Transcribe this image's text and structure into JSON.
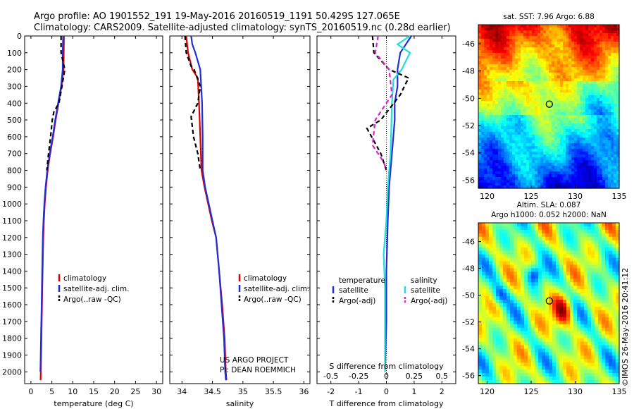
{
  "title": {
    "line1": "Argo profile: AO 1901552_191 19-May-2016 20160519_1191 50.429S 127.065E",
    "line2": "Climatology: CARS2009. Satellite-adjusted climatology: synTS_20160519.nc (0.28d earlier)"
  },
  "colors": {
    "climatology": "#dd0000",
    "satellite": "#1f2fd8",
    "argo": "#000000",
    "satellite_s": "#22dddd",
    "argo_s": "#dd22cc"
  },
  "credit": "©IMOS 26-May-2016 20:41:12",
  "chart_data": [
    {
      "id": "temperature",
      "type": "line",
      "xlabel": "temperature (deg C)",
      "xlim": [
        -1.5,
        31.5
      ],
      "xticks": [
        0,
        5,
        10,
        15,
        20,
        25,
        30
      ],
      "ylim": [
        2070,
        0
      ],
      "yticks": [
        0,
        100,
        200,
        300,
        400,
        500,
        600,
        700,
        800,
        900,
        1000,
        1100,
        1200,
        1300,
        1400,
        1500,
        1600,
        1700,
        1800,
        1900,
        2000
      ],
      "legend": [
        "climatology",
        "satellite-adj. clim.",
        "Argo(..raw -QC)"
      ],
      "series": [
        {
          "name": "climatology",
          "style": "solid",
          "color_key": "climatology",
          "points": [
            [
              7.9,
              0
            ],
            [
              7.85,
              100
            ],
            [
              7.8,
              200
            ],
            [
              7.3,
              300
            ],
            [
              6.6,
              400
            ],
            [
              5.9,
              500
            ],
            [
              5.3,
              600
            ],
            [
              4.6,
              700
            ],
            [
              4.0,
              800
            ],
            [
              3.6,
              900
            ],
            [
              3.3,
              1000
            ],
            [
              3.1,
              1100
            ],
            [
              2.95,
              1200
            ],
            [
              2.8,
              1400
            ],
            [
              2.65,
              1600
            ],
            [
              2.5,
              1800
            ],
            [
              2.35,
              2000
            ],
            [
              2.3,
              2050
            ]
          ]
        },
        {
          "name": "satellite-adj. clim.",
          "style": "solid",
          "color_key": "satellite",
          "points": [
            [
              7.7,
              0
            ],
            [
              7.6,
              100
            ],
            [
              7.6,
              200
            ],
            [
              7.2,
              300
            ],
            [
              6.5,
              400
            ],
            [
              5.8,
              500
            ],
            [
              5.2,
              600
            ],
            [
              4.5,
              700
            ],
            [
              3.9,
              800
            ],
            [
              3.5,
              900
            ],
            [
              3.2,
              1000
            ],
            [
              3.0,
              1100
            ],
            [
              2.85,
              1200
            ],
            [
              2.7,
              1400
            ],
            [
              2.55,
              1600
            ],
            [
              2.4,
              1800
            ],
            [
              2.3,
              1950
            ],
            [
              2.25,
              2000
            ]
          ]
        },
        {
          "name": "Argo(..raw -QC)",
          "style": "dashed",
          "color_key": "argo",
          "points": [
            [
              7.2,
              0
            ],
            [
              7.2,
              100
            ],
            [
              8.1,
              200
            ],
            [
              7.4,
              300
            ],
            [
              6.7,
              400
            ],
            [
              5.5,
              450
            ],
            [
              5.1,
              500
            ],
            [
              4.7,
              600
            ],
            [
              4.2,
              700
            ],
            [
              3.8,
              800
            ]
          ]
        }
      ]
    },
    {
      "id": "salinity",
      "type": "line",
      "xlabel": "salinity",
      "xlim": [
        33.8,
        36.1
      ],
      "xticks": [
        34,
        34.5,
        35,
        35.5,
        36
      ],
      "ylim": [
        2070,
        0
      ],
      "legend": [
        "climatology",
        "satellite-adj. clim.",
        "Argo(..raw -QC)"
      ],
      "annotation": [
        "US ARGO PROJECT",
        "PI: DEAN ROEMMICH"
      ],
      "series": [
        {
          "name": "climatology",
          "style": "solid",
          "color_key": "climatology",
          "points": [
            [
              34.07,
              0
            ],
            [
              34.1,
              100
            ],
            [
              34.17,
              200
            ],
            [
              34.26,
              250
            ],
            [
              34.28,
              400
            ],
            [
              34.3,
              600
            ],
            [
              34.32,
              800
            ],
            [
              34.37,
              900
            ],
            [
              34.43,
              1000
            ],
            [
              34.49,
              1100
            ],
            [
              34.56,
              1200
            ],
            [
              34.61,
              1400
            ],
            [
              34.66,
              1600
            ],
            [
              34.7,
              1800
            ],
            [
              34.72,
              2000
            ],
            [
              34.73,
              2050
            ]
          ]
        },
        {
          "name": "satellite-adj. clim.",
          "style": "solid",
          "color_key": "satellite",
          "points": [
            [
              34.15,
              0
            ],
            [
              34.17,
              50
            ],
            [
              34.22,
              100
            ],
            [
              34.3,
              200
            ],
            [
              34.33,
              400
            ],
            [
              34.34,
              600
            ],
            [
              34.34,
              800
            ],
            [
              34.38,
              900
            ],
            [
              34.44,
              1000
            ],
            [
              34.5,
              1100
            ],
            [
              34.56,
              1200
            ],
            [
              34.61,
              1400
            ],
            [
              34.65,
              1600
            ],
            [
              34.69,
              1800
            ],
            [
              34.71,
              2000
            ],
            [
              34.72,
              2050
            ]
          ]
        },
        {
          "name": "Argo(..raw -QC)",
          "style": "dashed",
          "color_key": "argo",
          "points": [
            [
              34.05,
              0
            ],
            [
              34.07,
              100
            ],
            [
              34.15,
              180
            ],
            [
              34.2,
              200
            ],
            [
              34.3,
              300
            ],
            [
              34.26,
              400
            ],
            [
              34.15,
              480
            ],
            [
              34.19,
              600
            ],
            [
              34.26,
              700
            ],
            [
              34.3,
              800
            ]
          ]
        }
      ]
    },
    {
      "id": "differences",
      "type": "line",
      "xlabel": "T difference from climatology",
      "xlabel_top": "S difference from climatology",
      "xlim": [
        -2.5,
        2.5
      ],
      "xticks": [
        -2,
        -1,
        0,
        1,
        2
      ],
      "xticks_top": [
        "-0.5",
        "-0.25",
        "0",
        "0.25",
        "0.5"
      ],
      "ylim": [
        2070,
        0
      ],
      "legend_temperature": {
        "header": "temperature",
        "items": [
          "satellite",
          "Argo(-adj)"
        ]
      },
      "legend_salinity": {
        "header": "salinity",
        "items": [
          "satellite",
          "Argo(-adj)"
        ]
      },
      "series": [
        {
          "name": "T satellite",
          "style": "solid",
          "color_key": "satellite",
          "points": [
            [
              0.9,
              0
            ],
            [
              0.5,
              100
            ],
            [
              0.4,
              200
            ],
            [
              0.4,
              300
            ],
            [
              0.3,
              400
            ],
            [
              0.3,
              500
            ],
            [
              0.2,
              700
            ],
            [
              0.1,
              900
            ],
            [
              0.05,
              1100
            ],
            [
              0.0,
              1400
            ],
            [
              0.0,
              1700
            ],
            [
              -0.05,
              2000
            ]
          ]
        },
        {
          "name": "S satellite",
          "style": "solid",
          "color_key": "satellite_s",
          "points": [
            [
              0.85,
              0
            ],
            [
              0.4,
              50
            ],
            [
              0.85,
              100
            ],
            [
              0.55,
              200
            ],
            [
              0.25,
              260
            ],
            [
              0.2,
              400
            ],
            [
              0.15,
              700
            ],
            [
              0.05,
              900
            ],
            [
              0.0,
              1100
            ],
            [
              -0.1,
              1300
            ],
            [
              -0.05,
              1500
            ],
            [
              -0.05,
              2000
            ]
          ]
        },
        {
          "name": "T Argo(-adj)",
          "style": "dashed",
          "color_key": "argo",
          "points": [
            [
              -0.5,
              0
            ],
            [
              -0.45,
              100
            ],
            [
              0.1,
              200
            ],
            [
              0.8,
              250
            ],
            [
              0.5,
              350
            ],
            [
              -0.2,
              500
            ],
            [
              -0.7,
              550
            ],
            [
              -0.2,
              700
            ],
            [
              0.0,
              800
            ]
          ]
        },
        {
          "name": "S Argo(-adj)",
          "style": "dashed",
          "color_key": "argo_s",
          "points": [
            [
              -0.3,
              0
            ],
            [
              -0.4,
              100
            ],
            [
              0.1,
              200
            ],
            [
              0.2,
              350
            ],
            [
              -0.4,
              500
            ],
            [
              -0.5,
              650
            ],
            [
              -0.1,
              750
            ],
            [
              0.0,
              800
            ]
          ]
        }
      ]
    },
    {
      "id": "sst_map",
      "type": "heatmap",
      "title": "sat. SST: 7.96 Argo: 6.88",
      "xlim": [
        119,
        135
      ],
      "ylim": [
        -56.6,
        -44.6
      ],
      "xticks": [
        120,
        125,
        130,
        135
      ],
      "yticks": [
        -46,
        -48,
        -50,
        -52,
        -54,
        -56
      ],
      "marker": {
        "lon": 127.065,
        "lat": -50.429
      },
      "colorscale": "jet"
    },
    {
      "id": "sla_map",
      "type": "heatmap",
      "title_lines": [
        "Altim. SLA: 0.087",
        "Argo h1000: 0.052 h2000: NaN"
      ],
      "xlim": [
        119,
        135
      ],
      "ylim": [
        -56.6,
        -44.6
      ],
      "xticks": [
        120,
        125,
        130,
        135
      ],
      "yticks": [
        -46,
        -48,
        -50,
        -52,
        -54,
        -56
      ],
      "marker": {
        "lon": 127.065,
        "lat": -50.429
      },
      "colorscale": "jet"
    }
  ]
}
